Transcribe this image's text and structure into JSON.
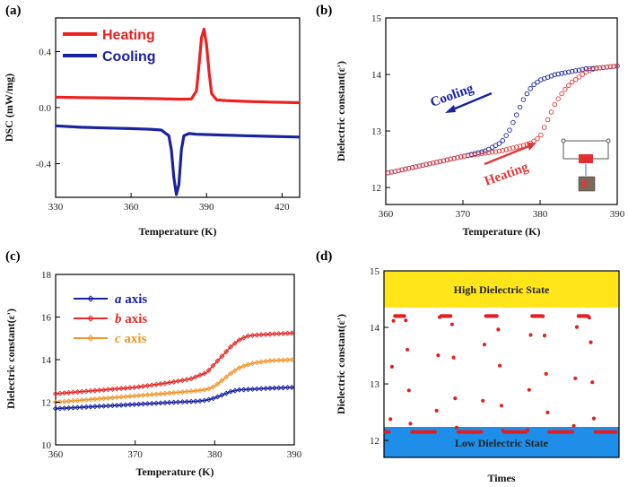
{
  "chart_data": [
    {
      "panel": "(a)",
      "type": "line",
      "xlabel": "Temperature (K)",
      "ylabel": "DSC (mW/mg)",
      "xlim": [
        330,
        427
      ],
      "ylim": [
        -0.64,
        0.64
      ],
      "xticks": [
        "330",
        "360",
        "390",
        "420"
      ],
      "yticks": [
        "-0.4",
        "0.0",
        "0.4"
      ],
      "legend_position": "top-left",
      "series": [
        {
          "name": "Heating",
          "color": "#ee2020",
          "x": [
            330,
            340,
            350,
            360,
            370,
            380,
            384,
            386,
            387,
            388,
            389,
            390,
            391,
            392,
            394,
            398,
            405,
            415,
            427
          ],
          "y": [
            0.075,
            0.072,
            0.07,
            0.067,
            0.064,
            0.06,
            0.062,
            0.12,
            0.3,
            0.5,
            0.56,
            0.45,
            0.25,
            0.1,
            0.055,
            0.05,
            0.045,
            0.04,
            0.035
          ]
        },
        {
          "name": "Cooling",
          "color": "#1a22a0",
          "x": [
            330,
            340,
            350,
            360,
            368,
            372,
            375,
            376,
            377,
            378,
            379,
            380,
            381,
            383,
            386,
            395,
            405,
            415,
            427
          ],
          "y": [
            -0.13,
            -0.14,
            -0.145,
            -0.15,
            -0.155,
            -0.16,
            -0.2,
            -0.3,
            -0.5,
            -0.62,
            -0.55,
            -0.3,
            -0.2,
            -0.185,
            -0.19,
            -0.195,
            -0.2,
            -0.205,
            -0.21
          ]
        }
      ]
    },
    {
      "panel": "(b)",
      "type": "line",
      "xlabel": "Temperature (K)",
      "ylabel": "Dielectric constant(ε')",
      "xlim": [
        360,
        390
      ],
      "ylim": [
        11.7,
        15
      ],
      "xticks": [
        "360",
        "370",
        "380",
        "390"
      ],
      "yticks": [
        "12",
        "13",
        "14",
        "15"
      ],
      "annotations": [
        "Cooling",
        "Heating"
      ],
      "series": [
        {
          "name": "Cooling",
          "color": "#1a22a0",
          "x": [
            360,
            365,
            370,
            373,
            375,
            376,
            377,
            378,
            379,
            380,
            381,
            382,
            384,
            386,
            388,
            390
          ],
          "y": [
            12.25,
            12.4,
            12.55,
            12.65,
            12.8,
            13.0,
            13.3,
            13.6,
            13.8,
            13.9,
            13.95,
            14.0,
            14.05,
            14.1,
            14.12,
            14.15
          ]
        },
        {
          "name": "Heating",
          "color": "#e03838",
          "x": [
            360,
            365,
            370,
            375,
            378,
            379,
            380,
            381,
            382,
            383,
            384,
            385,
            386,
            387,
            388,
            390
          ],
          "y": [
            12.25,
            12.4,
            12.55,
            12.65,
            12.75,
            12.8,
            12.9,
            13.2,
            13.5,
            13.7,
            13.85,
            13.95,
            14.05,
            14.1,
            14.12,
            14.15
          ]
        }
      ]
    },
    {
      "panel": "(c)",
      "type": "line",
      "xlabel": "Temperature (K)",
      "ylabel": "Dielectric constant(ε')",
      "xlim": [
        360,
        390
      ],
      "ylim": [
        10,
        18
      ],
      "xticks": [
        "360",
        "370",
        "380",
        "390"
      ],
      "yticks": [
        "10",
        "12",
        "14",
        "16",
        "18"
      ],
      "legend_position": "top-left",
      "series": [
        {
          "name_parts": [
            "a",
            " axis"
          ],
          "color": "#1a22a0",
          "x": [
            360,
            365,
            370,
            375,
            378,
            379,
            380,
            381,
            382,
            383,
            385,
            387,
            390
          ],
          "y": [
            11.7,
            11.8,
            11.9,
            12.0,
            12.05,
            12.1,
            12.2,
            12.35,
            12.5,
            12.58,
            12.62,
            12.66,
            12.7
          ]
        },
        {
          "name_parts": [
            "b",
            " axis"
          ],
          "color": "#e42a2a",
          "x": [
            360,
            365,
            370,
            374,
            377,
            379,
            380,
            381,
            382,
            383,
            384,
            385,
            387,
            390
          ],
          "y": [
            12.4,
            12.55,
            12.7,
            12.9,
            13.1,
            13.4,
            13.8,
            14.2,
            14.6,
            14.9,
            15.1,
            15.15,
            15.2,
            15.25
          ]
        },
        {
          "name_parts": [
            "c",
            " axis"
          ],
          "color": "#f0962a",
          "x": [
            360,
            365,
            370,
            375,
            378,
            379,
            380,
            381,
            382,
            383,
            384,
            385,
            387,
            390
          ],
          "y": [
            12.0,
            12.15,
            12.3,
            12.45,
            12.55,
            12.6,
            12.75,
            13.05,
            13.35,
            13.6,
            13.75,
            13.85,
            13.95,
            14.0
          ]
        }
      ]
    },
    {
      "panel": "(d)",
      "type": "scatter",
      "xlabel": "Times",
      "ylabel": "Dielectric constant(ε')",
      "ylim": [
        11.7,
        15
      ],
      "yticks": [
        "12",
        "13",
        "14",
        "15"
      ],
      "high_band": {
        "label": "High Dielectric State",
        "range": [
          14.3,
          15.0
        ],
        "color": "#ffe51a"
      },
      "low_band": {
        "label": "Low Dielectric State",
        "range": [
          11.7,
          12.05
        ],
        "color": "#1e8ee8"
      },
      "color": "#e02020",
      "cycles": 5,
      "high_value": 14.2,
      "low_value": 12.15
    }
  ]
}
